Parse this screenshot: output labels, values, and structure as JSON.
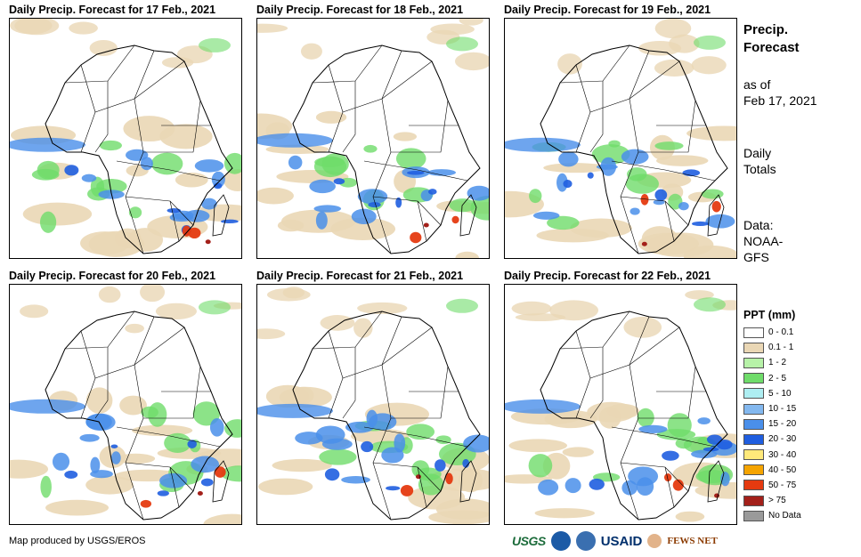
{
  "panels": [
    {
      "title": "Daily Precip. Forecast for 17 Feb., 2021"
    },
    {
      "title": "Daily Precip. Forecast for 18 Feb., 2021"
    },
    {
      "title": "Daily Precip. Forecast for 19 Feb., 2021"
    },
    {
      "title": "Daily Precip. Forecast for 20 Feb., 2021"
    },
    {
      "title": "Daily Precip. Forecast for 21 Feb., 2021"
    },
    {
      "title": "Daily Precip. Forecast for 22 Feb., 2021"
    }
  ],
  "sidebar": {
    "title_line1": "Precip.",
    "title_line2": "Forecast",
    "asof_line1": "as of",
    "asof_line2": "Feb 17, 2021",
    "totals_line1": "Daily",
    "totals_line2": "Totals",
    "source_line1": "Data:",
    "source_line2": "NOAA-",
    "source_line3": "GFS"
  },
  "legend": {
    "title": "PPT (mm)",
    "items": [
      {
        "label": "0 - 0.1",
        "color": "#ffffff"
      },
      {
        "label": "0.1 - 1",
        "color": "#ead7b5"
      },
      {
        "label": "1 - 2",
        "color": "#b7f2a8"
      },
      {
        "label": "2 - 5",
        "color": "#6fdc6a"
      },
      {
        "label": "5 - 10",
        "color": "#aeeef2"
      },
      {
        "label": "10 - 15",
        "color": "#83b8ef"
      },
      {
        "label": "15 - 20",
        "color": "#4a8fea"
      },
      {
        "label": "20 - 30",
        "color": "#1f5ee0"
      },
      {
        "label": "30 - 40",
        "color": "#ffe97a"
      },
      {
        "label": "40 - 50",
        "color": "#f5a400"
      },
      {
        "label": "50 - 75",
        "color": "#e53a10"
      },
      {
        "label": "> 75",
        "color": "#a3201a"
      },
      {
        "label": "No Data",
        "color": "#9a9a9a"
      }
    ]
  },
  "credit": "Map produced by USGS/EROS",
  "logos": {
    "usgs": "USGS",
    "usaid": "USAID",
    "fews": "FEWS NET",
    "noaa_color": "#1b5aa6",
    "doi_color": "#3a6fb0"
  }
}
